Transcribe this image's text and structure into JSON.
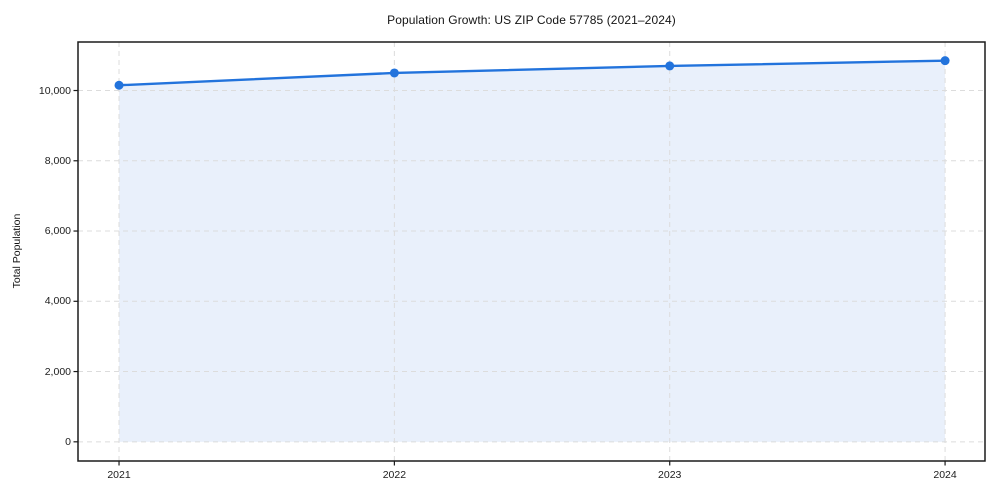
{
  "chart_data": {
    "type": "area",
    "title": "Population Growth: US ZIP Code 57785 (2021–2024)",
    "xlabel": "",
    "ylabel": "Total Population",
    "x": [
      2021,
      2022,
      2023,
      2024
    ],
    "series": [
      {
        "name": "Total Population",
        "values": [
          10150,
          10500,
          10700,
          10850
        ]
      }
    ],
    "xticks": [
      2021,
      2022,
      2023,
      2024
    ],
    "xtick_labels": [
      "2021",
      "2022",
      "2023",
      "2024"
    ],
    "yticks": [
      0,
      2000,
      4000,
      6000,
      8000,
      10000
    ],
    "ytick_labels": [
      "0",
      "2,000",
      "4,000",
      "6,000",
      "8,000",
      "10,000"
    ],
    "xlim": [
      2020.851,
      2024.145
    ],
    "ylim": [
      -546,
      11381
    ],
    "grid": true,
    "grid_style": "dashed",
    "legend": null,
    "colors": {
      "line": "#2273dc",
      "fill": "#e9f0fb",
      "grid": "#dcdcdc",
      "spine": "#1b1b1b",
      "text": "#141414"
    }
  }
}
